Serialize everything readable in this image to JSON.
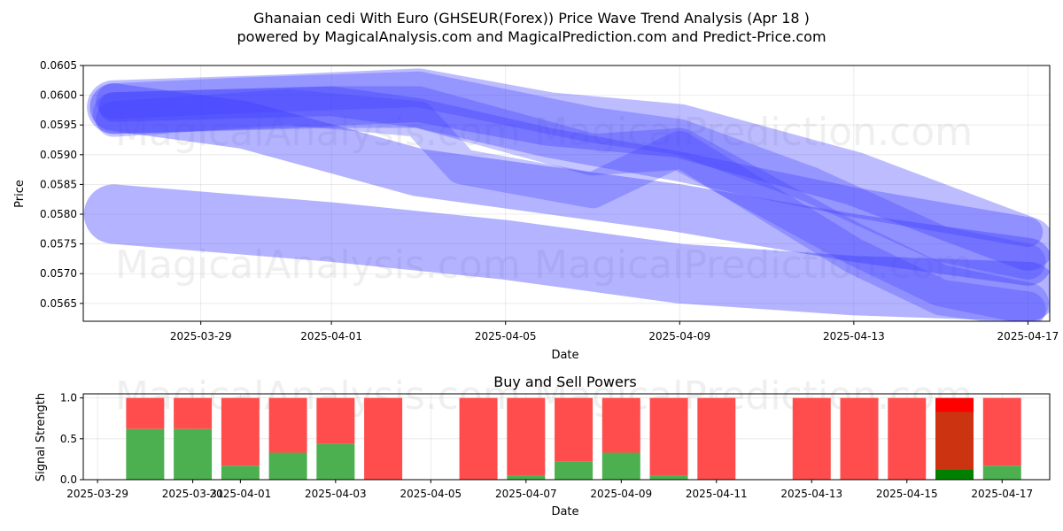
{
  "title_line1": "Ghanaian cedi With Euro (GHSEUR(Forex)) Price Wave Trend Analysis (Apr 18 )",
  "title_line2": "powered by MagicalAnalysis.com and MagicalPrediction.com and Predict-Price.com",
  "watermarks": [
    "MagicalAnalysis.com",
    "MagicalPrediction.com"
  ],
  "colors": {
    "wave": "#4040ff",
    "buy": "#4caf50",
    "sell": "#ff4d4d",
    "sell_strong": "#ff0000",
    "buy_strong": "#008000",
    "mixed": "#cc3311"
  },
  "chart_data": [
    {
      "type": "area",
      "name": "price-wave",
      "xlabel": "Date",
      "ylabel": "Price",
      "xlim": [
        "2025-03-26",
        "2025-04-18"
      ],
      "ylim": [
        0.0562,
        0.0605
      ],
      "x_ticks": [
        "2025-03-29",
        "2025-04-01",
        "2025-04-05",
        "2025-04-09",
        "2025-04-13",
        "2025-04-17"
      ],
      "y_ticks": [
        0.0565,
        0.057,
        0.0575,
        0.058,
        0.0585,
        0.059,
        0.0595,
        0.06,
        0.0605
      ],
      "y_tick_labels": [
        "0.0565",
        "0.0570",
        "0.0575",
        "0.0580",
        "0.0585",
        "0.0590",
        "0.0595",
        "0.0600",
        "0.0605"
      ],
      "grid": true,
      "bands": [
        {
          "points": [
            [
              "2025-03-27",
              0.0598
            ],
            [
              "2025-03-30",
              0.0595
            ],
            [
              "2025-04-03",
              0.0587
            ],
            [
              "2025-04-09",
              0.0581
            ],
            [
              "2025-04-13",
              0.0576
            ],
            [
              "2025-04-17",
              0.0572
            ]
          ],
          "width": 0.0008,
          "opacity": 0.4
        },
        {
          "points": [
            [
              "2025-03-27",
              0.058
            ],
            [
              "2025-04-01",
              0.0577
            ],
            [
              "2025-04-05",
              0.0574
            ],
            [
              "2025-04-09",
              0.057
            ],
            [
              "2025-04-13",
              0.0568
            ],
            [
              "2025-04-17",
              0.0567
            ]
          ],
          "width": 0.001,
          "opacity": 0.4
        },
        {
          "points": [
            [
              "2025-03-27",
              0.0598
            ],
            [
              "2025-03-31",
              0.0599
            ],
            [
              "2025-04-03",
              0.06
            ],
            [
              "2025-04-06",
              0.0596
            ],
            [
              "2025-04-09",
              0.0594
            ],
            [
              "2025-04-13",
              0.0586
            ],
            [
              "2025-04-17",
              0.0575
            ]
          ],
          "width": 0.0009,
          "opacity": 0.35
        },
        {
          "points": [
            [
              "2025-03-27",
              0.0597
            ],
            [
              "2025-04-01",
              0.0598
            ],
            [
              "2025-04-03",
              0.0598
            ],
            [
              "2025-04-05",
              0.0594
            ],
            [
              "2025-04-07",
              0.059
            ],
            [
              "2025-04-09",
              0.0591
            ],
            [
              "2025-04-11",
              0.0583
            ],
            [
              "2025-04-13",
              0.0575
            ],
            [
              "2025-04-15",
              0.0568
            ],
            [
              "2025-04-17",
              0.0565
            ]
          ],
          "width": 0.0007,
          "opacity": 0.3
        },
        {
          "points": [
            [
              "2025-03-27",
              0.0596
            ],
            [
              "2025-03-31",
              0.0598
            ],
            [
              "2025-04-03",
              0.0596
            ],
            [
              "2025-04-04",
              0.0588
            ],
            [
              "2025-04-07",
              0.0584
            ],
            [
              "2025-04-09",
              0.0591
            ],
            [
              "2025-04-11",
              0.0582
            ],
            [
              "2025-04-13",
              0.0573
            ],
            [
              "2025-04-15",
              0.0566
            ],
            [
              "2025-04-17",
              0.0564
            ]
          ],
          "width": 0.0006,
          "opacity": 0.3
        },
        {
          "points": [
            [
              "2025-03-27",
              0.0598
            ],
            [
              "2025-04-01",
              0.0599
            ],
            [
              "2025-04-03",
              0.0597
            ],
            [
              "2025-04-06",
              0.0592
            ],
            [
              "2025-04-09",
              0.0588
            ],
            [
              "2025-04-13",
              0.0582
            ],
            [
              "2025-04-17",
              0.0577
            ]
          ],
          "width": 0.0005,
          "opacity": 0.35
        },
        {
          "points": [
            [
              "2025-03-27",
              0.0599
            ],
            [
              "2025-03-30",
              0.06
            ],
            [
              "2025-04-03",
              0.0601
            ],
            [
              "2025-04-07",
              0.0595
            ],
            [
              "2025-04-09",
              0.0593
            ],
            [
              "2025-04-12",
              0.0585
            ],
            [
              "2025-04-15",
              0.0575
            ],
            [
              "2025-04-17",
              0.0572
            ]
          ],
          "width": 0.0006,
          "opacity": 0.3
        }
      ]
    },
    {
      "type": "bar",
      "name": "buy-sell-powers",
      "title": "Buy and Sell Powers",
      "xlabel": "Date",
      "ylabel": "Signal Strength",
      "xlim": [
        "2025-03-29",
        "2025-04-18"
      ],
      "ylim": [
        0,
        1.05
      ],
      "x_ticks": [
        "2025-03-29",
        "2025-03-31",
        "2025-04-01",
        "2025-04-03",
        "2025-04-05",
        "2025-04-07",
        "2025-04-09",
        "2025-04-11",
        "2025-04-13",
        "2025-04-15",
        "2025-04-17"
      ],
      "x_tick_labels": [
        "2025-03-29",
        "2025-03-31",
        "2025-04-01",
        "2025-04-03",
        "2025-04-05",
        "2025-04-07",
        "2025-04-09",
        "2025-04-11",
        "2025-04-13",
        "2025-04-15",
        "2025-04-17"
      ],
      "y_ticks": [
        0,
        0.5,
        1
      ],
      "y_tick_labels": [
        "0.0",
        "0.5",
        "1.0"
      ],
      "grid": true,
      "bars": [
        {
          "date": "2025-03-30",
          "buy": 0.62,
          "sell": 0.38
        },
        {
          "date": "2025-03-31",
          "buy": 0.62,
          "sell": 0.38
        },
        {
          "date": "2025-04-01",
          "buy": 0.17,
          "sell": 0.83
        },
        {
          "date": "2025-04-02",
          "buy": 0.33,
          "sell": 0.67
        },
        {
          "date": "2025-04-03",
          "buy": 0.44,
          "sell": 0.56
        },
        {
          "date": "2025-04-04",
          "buy": 0.0,
          "sell": 1.0
        },
        {
          "date": "2025-04-06",
          "buy": 0.0,
          "sell": 1.0
        },
        {
          "date": "2025-04-07",
          "buy": 0.05,
          "sell": 0.95
        },
        {
          "date": "2025-04-08",
          "buy": 0.22,
          "sell": 0.78
        },
        {
          "date": "2025-04-09",
          "buy": 0.33,
          "sell": 0.67
        },
        {
          "date": "2025-04-10",
          "buy": 0.05,
          "sell": 0.95
        },
        {
          "date": "2025-04-11",
          "buy": 0.0,
          "sell": 1.0
        },
        {
          "date": "2025-04-13",
          "buy": 0.0,
          "sell": 1.0
        },
        {
          "date": "2025-04-14",
          "buy": 0.0,
          "sell": 1.0
        },
        {
          "date": "2025-04-15",
          "buy": 0.0,
          "sell": 1.0
        },
        {
          "date": "2025-04-16",
          "buy": 0.12,
          "sell": 0.88,
          "mixed_top": 0.83
        },
        {
          "date": "2025-04-17",
          "buy": 0.17,
          "sell": 0.83
        }
      ]
    }
  ]
}
